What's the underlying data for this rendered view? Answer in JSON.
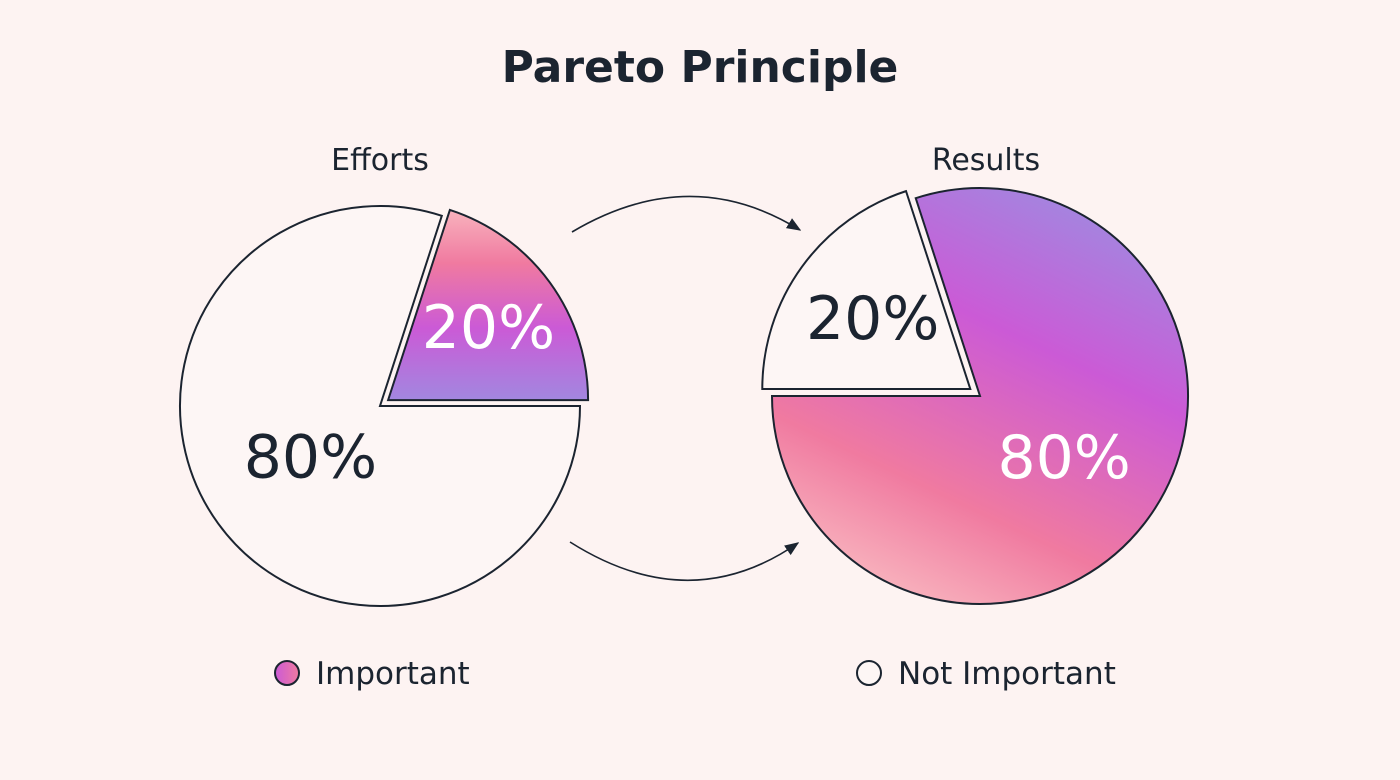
{
  "chart_data": {
    "type": "pie",
    "title": "Pareto Principle",
    "legend": {
      "placement": "bottom",
      "entries": [
        {
          "label": "Important",
          "swatch": "gradient"
        },
        {
          "label": "Not Important",
          "swatch": "white"
        }
      ]
    },
    "charts": [
      {
        "subtitle": "Efforts",
        "slices": [
          {
            "category": "Important",
            "value": 20,
            "label": "20%",
            "exploded": true
          },
          {
            "category": "Not Important",
            "value": 80,
            "label": "80%",
            "exploded": false
          }
        ]
      },
      {
        "subtitle": "Results",
        "slices": [
          {
            "category": "Important",
            "value": 80,
            "label": "80%",
            "exploded": false
          },
          {
            "category": "Not Important",
            "value": 20,
            "label": "20%",
            "exploded": true
          }
        ]
      }
    ],
    "arrows": [
      {
        "from": "Efforts",
        "to": "Results",
        "position": "top"
      },
      {
        "from": "Efforts",
        "to": "Results",
        "position": "bottom"
      }
    ]
  },
  "colors": {
    "background": "#fdf3f2",
    "outline": "#1b2430",
    "not_important_fill": "#fdf6f5",
    "gradient_pink_light": "#f8b2bd",
    "gradient_pink": "#f07aa0",
    "gradient_magenta": "#cb5ad6",
    "gradient_violet": "#a287e0",
    "label_light": "#ffffff",
    "label_dark": "#1b2430"
  }
}
